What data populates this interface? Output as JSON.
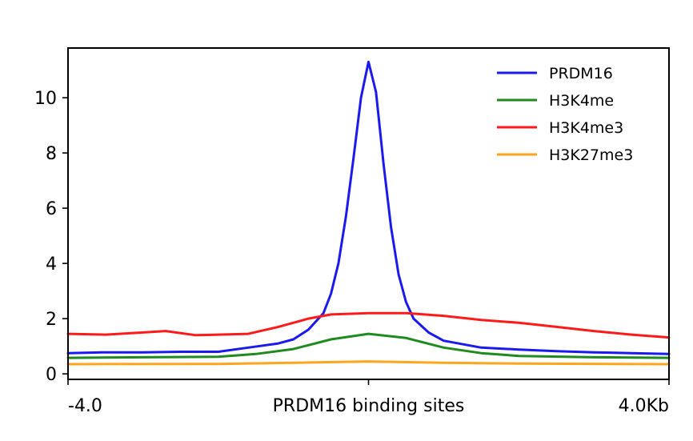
{
  "chart_data": {
    "type": "line",
    "title": "",
    "xlabel": "",
    "ylabel": "",
    "xlim": [
      -4.0,
      4.0
    ],
    "ylim": [
      -0.2,
      11.8
    ],
    "yticks": [
      0,
      2,
      4,
      6,
      8,
      10
    ],
    "ytick_labels": [
      "0",
      "2",
      "4",
      "6",
      "8",
      "10"
    ],
    "xticks": [
      {
        "value": -4.0,
        "label": "-4.0",
        "anchor": "start"
      },
      {
        "value": 0.0,
        "label": "PRDM16 binding sites",
        "anchor": "middle"
      },
      {
        "value": 4.0,
        "label": "4.0Kb",
        "anchor": "end"
      }
    ],
    "grid": false,
    "legend_position": "top-right",
    "series": [
      {
        "name": "PRDM16",
        "color": "#1a1aee",
        "x": [
          -4.0,
          -3.5,
          -3.0,
          -2.5,
          -2.0,
          -1.6,
          -1.2,
          -1.0,
          -0.8,
          -0.6,
          -0.5,
          -0.4,
          -0.3,
          -0.2,
          -0.1,
          0.0,
          0.1,
          0.2,
          0.3,
          0.4,
          0.5,
          0.6,
          0.8,
          1.0,
          1.5,
          2.0,
          2.5,
          3.0,
          3.5,
          4.0
        ],
        "y": [
          0.75,
          0.78,
          0.78,
          0.8,
          0.8,
          0.95,
          1.1,
          1.25,
          1.6,
          2.2,
          2.9,
          4.0,
          5.7,
          7.8,
          10.0,
          11.3,
          10.2,
          7.6,
          5.3,
          3.6,
          2.6,
          2.0,
          1.5,
          1.2,
          0.95,
          0.88,
          0.82,
          0.78,
          0.75,
          0.72
        ]
      },
      {
        "name": "H3K4me",
        "color": "#1f8a1f",
        "x": [
          -4.0,
          -3.0,
          -2.0,
          -1.5,
          -1.0,
          -0.5,
          0.0,
          0.5,
          1.0,
          1.5,
          2.0,
          3.0,
          4.0
        ],
        "y": [
          0.58,
          0.6,
          0.62,
          0.72,
          0.9,
          1.25,
          1.45,
          1.3,
          0.95,
          0.75,
          0.65,
          0.6,
          0.58
        ]
      },
      {
        "name": "H3K4me3",
        "color": "#ff1a1a",
        "x": [
          -4.0,
          -3.5,
          -3.0,
          -2.7,
          -2.3,
          -2.0,
          -1.6,
          -1.2,
          -0.8,
          -0.5,
          0.0,
          0.5,
          1.0,
          1.5,
          2.0,
          2.5,
          3.0,
          3.5,
          4.0
        ],
        "y": [
          1.45,
          1.42,
          1.5,
          1.55,
          1.4,
          1.42,
          1.45,
          1.7,
          2.0,
          2.15,
          2.2,
          2.2,
          2.1,
          1.95,
          1.85,
          1.7,
          1.55,
          1.42,
          1.32
        ]
      },
      {
        "name": "H3K27me3",
        "color": "#ffa51a",
        "x": [
          -4.0,
          -2.0,
          -1.0,
          0.0,
          1.0,
          2.0,
          4.0
        ],
        "y": [
          0.35,
          0.36,
          0.4,
          0.45,
          0.4,
          0.37,
          0.35
        ]
      }
    ]
  }
}
